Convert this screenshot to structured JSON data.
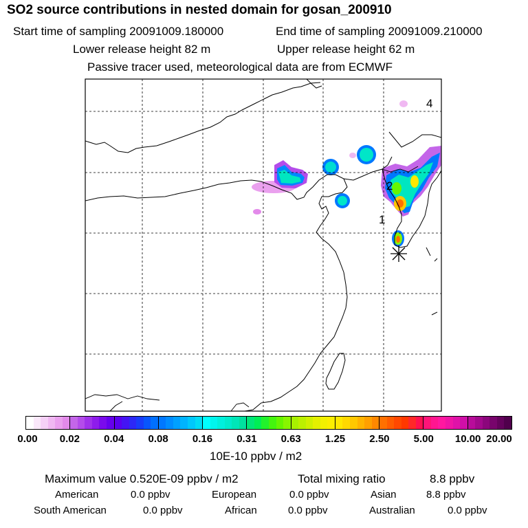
{
  "header": {
    "title": "SO2 source contributions in nested domain for gosan_200910",
    "start_time": "Start time of sampling 20091009.180000",
    "end_time": "End time of sampling 20091009.210000",
    "lower_height": "Lower release height   82 m",
    "upper_height": "Upper release height   62 m",
    "tracer_note": "Passive tracer used, meteorological data are from ECMWF"
  },
  "map": {
    "markers": [
      {
        "label": "1"
      },
      {
        "label": "2"
      },
      {
        "label": "4"
      }
    ],
    "station_symbol": "asterisk"
  },
  "colorbar": {
    "ticks": [
      "0.00",
      "0.02",
      "0.04",
      "0.08",
      "0.16",
      "0.31",
      "0.63",
      "1.25",
      "2.50",
      "5.00",
      "10.00",
      "20.00"
    ],
    "unit": "10E-10 ppbv / m2",
    "colors": [
      [
        "#ffffff",
        "#fae8fa",
        "#f5d0f7",
        "#f0b8f2",
        "#eaa0ee",
        "#e38aea"
      ],
      [
        "#c466e9",
        "#b44cea",
        "#a032ea",
        "#8e1ceb",
        "#7a0aec",
        "#6600ee"
      ],
      [
        "#5a00f0",
        "#4414f4",
        "#2c28f7",
        "#183cfa",
        "#0856fd",
        "#0070ff"
      ],
      [
        "#0078ff",
        "#008cff",
        "#00a0ff",
        "#00b4ff",
        "#00c8fc",
        "#00dcf5"
      ],
      [
        "#00ffff",
        "#00f5ee",
        "#00f0dd",
        "#00ebcc",
        "#00e6b8",
        "#00e19f"
      ],
      [
        "#00e678",
        "#00ee55",
        "#22f22c",
        "#44f40e",
        "#66f500",
        "#88f500"
      ],
      [
        "#a8f000",
        "#bcf000",
        "#d0f000",
        "#e4f000",
        "#f2f000",
        "#fbee00"
      ],
      [
        "#ffe800",
        "#ffd800",
        "#ffc800",
        "#ffb400",
        "#ffa000",
        "#ff8800"
      ],
      [
        "#ff7000",
        "#ff5c00",
        "#ff4800",
        "#ff3800",
        "#ff2828",
        "#ff1050"
      ],
      [
        "#ff1478",
        "#ff1690",
        "#ff18a0",
        "#f015a5",
        "#e012a8",
        "#d00fa8"
      ],
      [
        "#b80c9a",
        "#a2098c",
        "#8c067c",
        "#78046c",
        "#64025c",
        "#50004c"
      ]
    ]
  },
  "stats": {
    "max_label": "Maximum value  0.520E-09 ppbv / m2",
    "total_label": "Total mixing ratio",
    "total_value": "8.8 ppbv",
    "rows": [
      [
        {
          "label": "American",
          "value": "0.0 ppbv"
        },
        {
          "label": "European",
          "value": "0.0 ppbv"
        },
        {
          "label": "Asian",
          "value": "8.8 ppbv"
        }
      ],
      [
        {
          "label": "South American",
          "value": "0.0 ppbv"
        },
        {
          "label": "African",
          "value": "0.0 ppbv"
        },
        {
          "label": "Australian",
          "value": "0.0 ppbv"
        }
      ]
    ]
  }
}
